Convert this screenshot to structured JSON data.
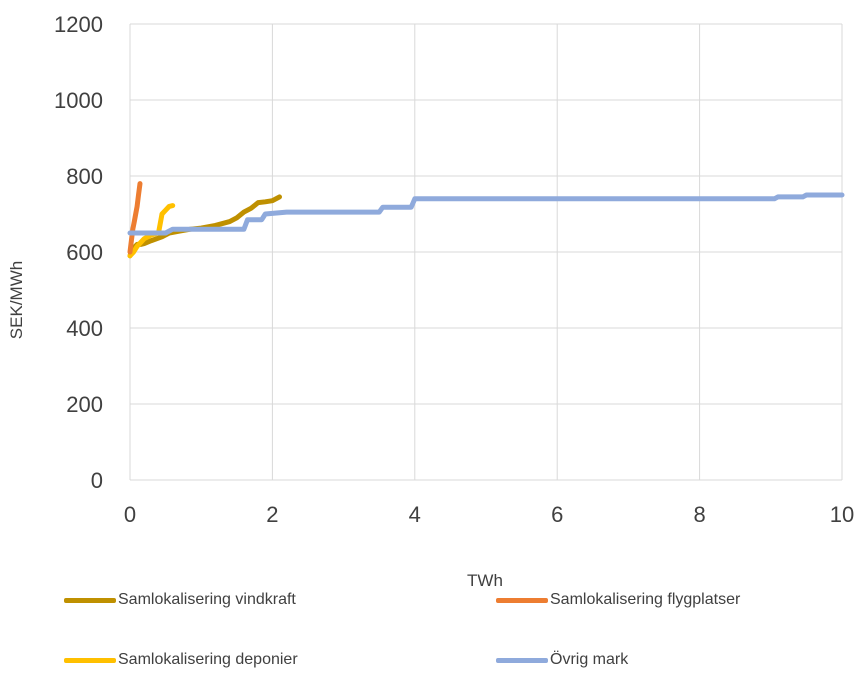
{
  "chart_data": {
    "type": "line",
    "title": "",
    "xlabel": "TWh",
    "ylabel": "SEK/MWh",
    "xlim": [
      0,
      10
    ],
    "ylim": [
      0,
      1200
    ],
    "x_ticks": [
      "0",
      "2",
      "4",
      "6",
      "8",
      "10"
    ],
    "y_ticks": [
      "0",
      "200",
      "400",
      "600",
      "800",
      "1000",
      "1200"
    ],
    "grid": true,
    "legend_position": "bottom",
    "series": [
      {
        "name": "Samlokalisering vindkraft",
        "color": "#BF9000",
        "x": [
          0,
          0.02,
          0.05,
          0.1,
          0.15,
          0.2,
          0.3,
          0.45,
          0.55,
          0.7,
          0.85,
          1.0,
          1.2,
          1.4,
          1.5,
          1.6,
          1.7,
          1.8,
          1.9,
          2.0,
          2.1
        ],
        "y": [
          590,
          600,
          610,
          620,
          620,
          622,
          630,
          640,
          650,
          655,
          660,
          663,
          670,
          680,
          690,
          705,
          715,
          730,
          732,
          735,
          745
        ]
      },
      {
        "name": "Samlokalisering flygplatser",
        "color": "#ED7D31",
        "x": [
          0,
          0.02,
          0.04,
          0.06,
          0.08,
          0.1,
          0.12,
          0.14
        ],
        "y": [
          600,
          630,
          660,
          680,
          700,
          720,
          750,
          780
        ]
      },
      {
        "name": "Samlokalisering deponier",
        "color": "#FFC000",
        "x": [
          0,
          0.05,
          0.1,
          0.15,
          0.2,
          0.3,
          0.4,
          0.45,
          0.5,
          0.55,
          0.6
        ],
        "y": [
          590,
          600,
          615,
          625,
          635,
          645,
          650,
          700,
          710,
          720,
          722
        ]
      },
      {
        "name": "Övrig mark",
        "color": "#8FAADC",
        "x": [
          0,
          0.5,
          0.6,
          1.0,
          1.6,
          1.65,
          1.85,
          1.9,
          2.2,
          3.5,
          3.55,
          3.95,
          4.0,
          9.05,
          9.1,
          9.45,
          9.5,
          10
        ],
        "y": [
          650,
          650,
          660,
          660,
          660,
          685,
          685,
          700,
          705,
          705,
          718,
          718,
          740,
          740,
          745,
          745,
          750,
          750
        ]
      }
    ]
  }
}
